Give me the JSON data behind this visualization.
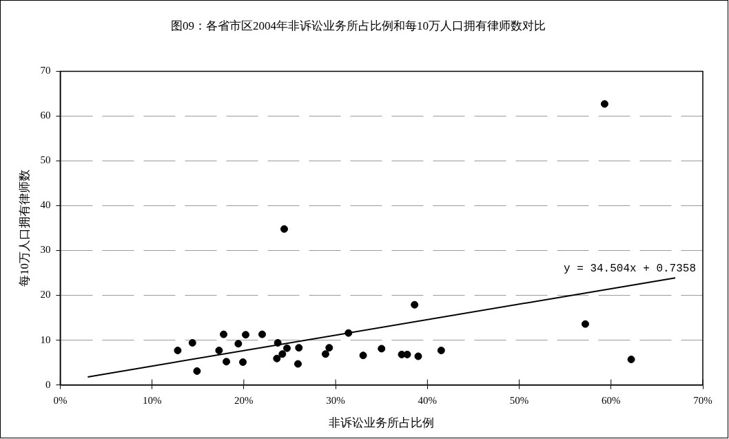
{
  "chart_data": {
    "type": "scatter",
    "title": "图09：各省市区2004年非诉讼业务所占比例和每10万人口拥有律师数对比",
    "xlabel": "非诉讼业务所占比例",
    "ylabel": "每10万人口拥有律师数",
    "xlim": [
      0,
      0.7
    ],
    "xticks": [
      {
        "value": 0,
        "label": "0%"
      },
      {
        "value": 0.1,
        "label": "10%"
      },
      {
        "value": 0.2,
        "label": "20%"
      },
      {
        "value": 0.3,
        "label": "30%"
      },
      {
        "value": 0.4,
        "label": "40%"
      },
      {
        "value": 0.5,
        "label": "50%"
      },
      {
        "value": 0.6,
        "label": "60%"
      },
      {
        "value": 0.7,
        "label": "70%"
      }
    ],
    "ylim": [
      0,
      70
    ],
    "yticks": [
      0,
      10,
      20,
      30,
      40,
      50,
      60,
      70
    ],
    "grid": "y",
    "legend": false,
    "series": [
      {
        "marker": "circle",
        "color": "#000000",
        "x": [
          0.128,
          0.144,
          0.149,
          0.173,
          0.178,
          0.181,
          0.194,
          0.199,
          0.202,
          0.22,
          0.237,
          0.236,
          0.242,
          0.247,
          0.259,
          0.26,
          0.289,
          0.293,
          0.314,
          0.33,
          0.35,
          0.372,
          0.378,
          0.386,
          0.39,
          0.415,
          0.572,
          0.244,
          0.593,
          0.622
        ],
        "values": [
          7.7,
          9.4,
          3.1,
          7.7,
          11.3,
          5.2,
          9.2,
          5.1,
          11.2,
          11.3,
          9.4,
          5.9,
          6.9,
          8.2,
          4.7,
          8.3,
          6.9,
          8.3,
          11.6,
          6.6,
          8.1,
          6.8,
          6.8,
          17.9,
          6.4,
          7.7,
          13.6,
          34.8,
          62.7,
          5.7
        ]
      },
      {
        "type": "line",
        "marker": "none",
        "color": "#000000",
        "x": [
          0.03,
          0.67
        ],
        "values": [
          1.8,
          23.9
        ]
      }
    ],
    "annotations": [
      "y = 34.504x + 0.7358"
    ]
  }
}
